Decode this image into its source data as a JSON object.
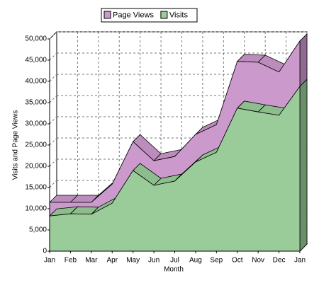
{
  "chart_data": {
    "type": "area3d",
    "categories": [
      "Jan",
      "Feb",
      "Mar",
      "Apr",
      "May",
      "Jun",
      "Jul",
      "Aug",
      "Sep",
      "Oct",
      "Nov",
      "Dec",
      "Jan"
    ],
    "series": [
      {
        "name": "Page Views",
        "color": "#cc99cc",
        "values": [
          11500,
          11500,
          11500,
          15800,
          25800,
          21300,
          22300,
          27500,
          29800,
          44700,
          44500,
          42200,
          49500
        ]
      },
      {
        "name": "Visits",
        "color": "#99cc99",
        "values": [
          8300,
          8800,
          8700,
          11300,
          19000,
          15500,
          16500,
          21000,
          23300,
          33700,
          32800,
          32000,
          38800
        ]
      }
    ],
    "x_label": "Month",
    "y_label": "Visits and Page Views",
    "ylim": [
      0,
      50000
    ],
    "yticks": [
      0,
      {
        "value": 5000,
        "label": "5,000"
      },
      {
        "value": 10000,
        "label": "10,000"
      },
      {
        "value": 15000,
        "label": "15,000"
      },
      {
        "value": 20000,
        "label": "20,000"
      },
      {
        "value": 25000,
        "label": "25,000"
      },
      {
        "value": 30000,
        "label": "30,000"
      },
      {
        "value": 35000,
        "label": "35,000"
      },
      {
        "value": 40000,
        "label": "40,000"
      },
      {
        "value": 45000,
        "label": "45,000"
      },
      {
        "value": 50000,
        "label": "50,000"
      }
    ],
    "grid": true
  }
}
